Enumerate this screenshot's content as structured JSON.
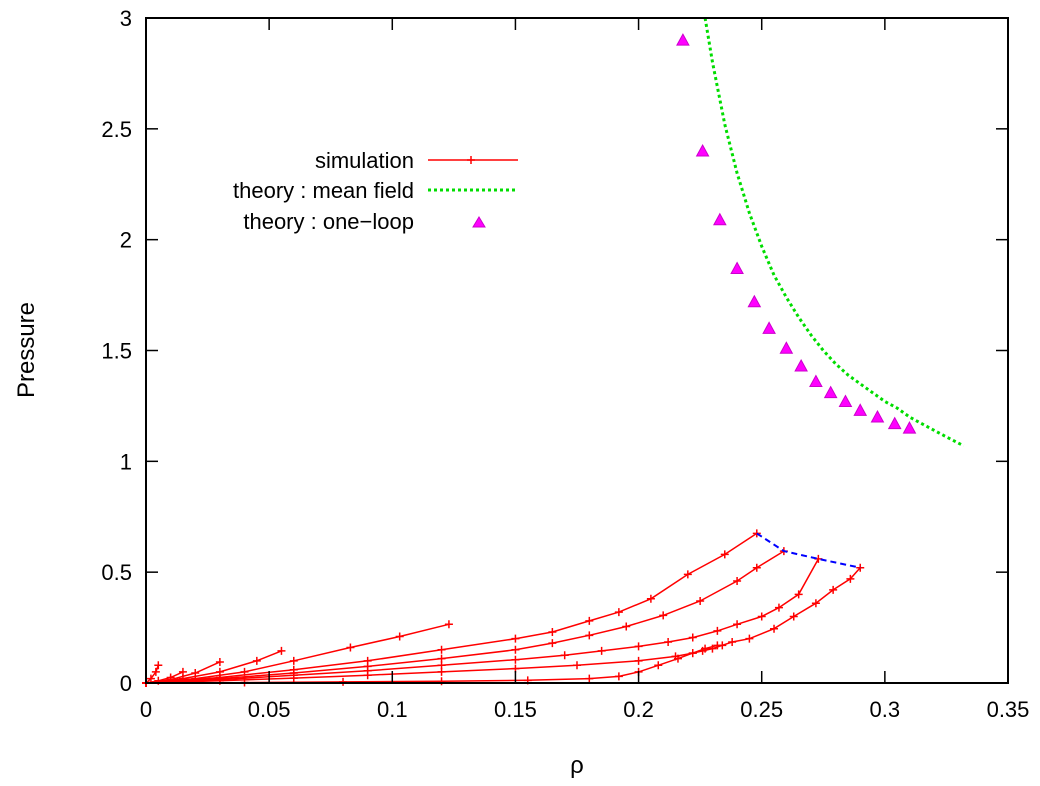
{
  "chart_data": {
    "type": "line",
    "xlabel": "ρ",
    "ylabel": "Pressure",
    "xlim": [
      0,
      0.35
    ],
    "ylim": [
      0,
      3
    ],
    "xticks": [
      "0",
      "0.05",
      "0.1",
      "0.15",
      "0.2",
      "0.25",
      "0.3",
      "0.35"
    ],
    "yticks": [
      "0",
      "0.5",
      "1",
      "1.5",
      "2",
      "2.5",
      "3"
    ],
    "legend_position": "top-left",
    "grid": false,
    "colors": {
      "simulation": "#ff0000",
      "mean_field": "#00dd00",
      "one_loop": "#ff00ff",
      "connector": "#0000ff"
    },
    "legend": [
      {
        "label": "simulation",
        "style": "line-plus"
      },
      {
        "label": "theory : mean field",
        "style": "dotted"
      },
      {
        "label": "theory : one−loop",
        "style": "triangle"
      }
    ],
    "simulation_curves": [
      {
        "x": [
          0,
          0.002,
          0.004,
          0.005
        ],
        "y": [
          0,
          0.02,
          0.05,
          0.08
        ]
      },
      {
        "x": [
          0,
          0.005,
          0.01,
          0.015
        ],
        "y": [
          0,
          0.01,
          0.025,
          0.05
        ]
      },
      {
        "x": [
          0,
          0.01,
          0.02,
          0.03
        ],
        "y": [
          0,
          0.015,
          0.045,
          0.095
        ]
      },
      {
        "x": [
          0,
          0.015,
          0.03,
          0.045,
          0.055
        ],
        "y": [
          0,
          0.02,
          0.05,
          0.1,
          0.145
        ]
      },
      {
        "x": [
          0,
          0.02,
          0.04,
          0.06,
          0.083,
          0.103,
          0.123
        ],
        "y": [
          0,
          0.02,
          0.05,
          0.1,
          0.16,
          0.21,
          0.265
        ]
      },
      {
        "x": [
          0,
          0.03,
          0.06,
          0.09,
          0.12,
          0.15,
          0.165,
          0.18,
          0.192,
          0.205,
          0.22,
          0.235,
          0.248
        ],
        "y": [
          0,
          0.025,
          0.06,
          0.1,
          0.15,
          0.2,
          0.23,
          0.28,
          0.32,
          0.38,
          0.49,
          0.58,
          0.675
        ]
      },
      {
        "x": [
          0,
          0.03,
          0.06,
          0.09,
          0.12,
          0.15,
          0.165,
          0.18,
          0.195,
          0.21,
          0.225,
          0.24,
          0.248,
          0.259
        ],
        "y": [
          0,
          0.02,
          0.045,
          0.075,
          0.11,
          0.15,
          0.18,
          0.215,
          0.255,
          0.305,
          0.37,
          0.46,
          0.52,
          0.595
        ]
      },
      {
        "x": [
          0,
          0.03,
          0.06,
          0.09,
          0.12,
          0.15,
          0.17,
          0.185,
          0.2,
          0.212,
          0.222,
          0.232,
          0.24,
          0.25,
          0.257,
          0.265,
          0.273
        ],
        "y": [
          0,
          0.015,
          0.035,
          0.055,
          0.08,
          0.105,
          0.125,
          0.145,
          0.165,
          0.185,
          0.205,
          0.235,
          0.265,
          0.3,
          0.34,
          0.4,
          0.56
        ]
      },
      {
        "x": [
          0,
          0.03,
          0.06,
          0.09,
          0.12,
          0.15,
          0.175,
          0.2,
          0.215,
          0.222,
          0.226,
          0.23,
          0.234,
          0.238,
          0.245,
          0.255,
          0.263,
          0.272,
          0.279,
          0.286,
          0.29
        ],
        "y": [
          0,
          0.01,
          0.022,
          0.035,
          0.05,
          0.065,
          0.08,
          0.1,
          0.12,
          0.135,
          0.145,
          0.155,
          0.17,
          0.185,
          0.2,
          0.245,
          0.3,
          0.36,
          0.42,
          0.47,
          0.52
        ]
      },
      {
        "x": [
          0,
          0.04,
          0.08,
          0.12,
          0.155,
          0.18,
          0.192,
          0.2,
          0.208,
          0.216,
          0.222,
          0.227,
          0.232
        ],
        "y": [
          0,
          0.002,
          0.005,
          0.008,
          0.012,
          0.02,
          0.03,
          0.05,
          0.08,
          0.11,
          0.135,
          0.155,
          0.17
        ]
      }
    ],
    "connector_curve": {
      "x": [
        0.248,
        0.259,
        0.273,
        0.29
      ],
      "y": [
        0.675,
        0.595,
        0.56,
        0.52
      ]
    },
    "mean_field_curve": {
      "x": [
        0.227,
        0.23,
        0.235,
        0.24,
        0.245,
        0.25,
        0.255,
        0.26,
        0.265,
        0.27,
        0.275,
        0.28,
        0.285,
        0.29,
        0.295,
        0.3,
        0.305,
        0.31,
        0.315,
        0.32,
        0.325,
        0.332
      ],
      "y": [
        3.0,
        2.8,
        2.52,
        2.3,
        2.12,
        1.97,
        1.84,
        1.74,
        1.65,
        1.57,
        1.5,
        1.44,
        1.39,
        1.35,
        1.31,
        1.27,
        1.24,
        1.2,
        1.17,
        1.14,
        1.11,
        1.07
      ]
    },
    "one_loop_points": {
      "x": [
        0.218,
        0.226,
        0.233,
        0.24,
        0.247,
        0.253,
        0.26,
        0.266,
        0.272,
        0.278,
        0.284,
        0.29,
        0.297,
        0.304,
        0.31
      ],
      "y": [
        2.9,
        2.4,
        2.09,
        1.87,
        1.72,
        1.6,
        1.51,
        1.43,
        1.36,
        1.31,
        1.27,
        1.23,
        1.2,
        1.17,
        1.15
      ]
    }
  }
}
